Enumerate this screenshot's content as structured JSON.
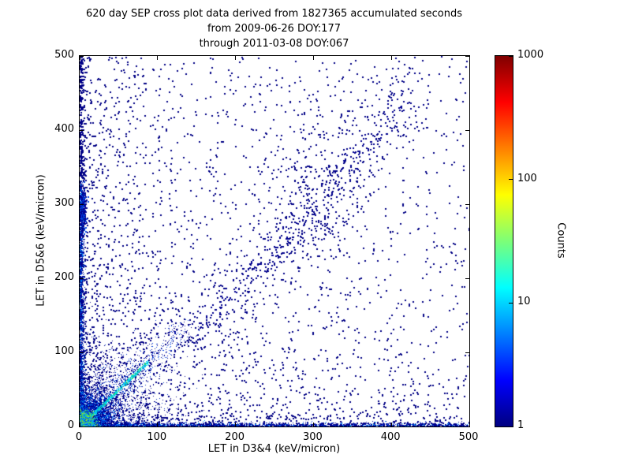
{
  "chart_data": {
    "type": "scatter",
    "subtype": "2d-density-cross-plot",
    "title_lines": [
      "620 day SEP cross plot data derived from 1827365 accumulated seconds",
      "from 2009-06-26 DOY:177",
      "through 2011-03-08 DOY:067"
    ],
    "xlabel": "LET in D3&4 (keV/micron)",
    "ylabel": "LET in D5&6 (keV/micron)",
    "xlim": [
      0,
      500
    ],
    "ylim": [
      0,
      500
    ],
    "xticks": [
      0,
      100,
      200,
      300,
      400,
      500
    ],
    "yticks": [
      0,
      100,
      200,
      300,
      400,
      500
    ],
    "grid": false,
    "colorbar": {
      "label": "Counts",
      "scale": "log",
      "min": 1,
      "max": 1000,
      "ticks": [
        1,
        10,
        100,
        1000
      ],
      "colormap": "jet",
      "gradient_stops": [
        {
          "pos": 0.0,
          "color": "#000080"
        },
        {
          "pos": 0.125,
          "color": "#0000ff"
        },
        {
          "pos": 0.375,
          "color": "#00ffff"
        },
        {
          "pos": 0.5,
          "color": "#7cff78"
        },
        {
          "pos": 0.625,
          "color": "#ffff00"
        },
        {
          "pos": 0.75,
          "color": "#ff8000"
        },
        {
          "pos": 0.875,
          "color": "#ff0000"
        },
        {
          "pos": 1.0,
          "color": "#800000"
        }
      ]
    },
    "single_count_color": "#000084",
    "clusters": [
      {
        "name": "origin-outer-halo",
        "shape": "gaussian",
        "cx": 0,
        "cy": 0,
        "sx": 50,
        "sy": 50,
        "n": 1600,
        "size": 1,
        "colors": [
          {
            "c": "#000088",
            "w": 0.8
          },
          {
            "c": "#0030c0",
            "w": 0.2
          }
        ]
      },
      {
        "name": "background-lower-triangle",
        "shape": "power",
        "ex": 1.7,
        "ey": 3.2,
        "n": 1600,
        "size": 2,
        "colors": [
          {
            "c": "#000084",
            "w": 1
          }
        ]
      },
      {
        "name": "background-left-column",
        "shape": "power",
        "ex": 3.2,
        "ey": 1.6,
        "n": 1500,
        "size": 2,
        "colors": [
          {
            "c": "#000084",
            "w": 1
          }
        ]
      },
      {
        "name": "background-sparse-field",
        "shape": "power",
        "ex": 1.25,
        "ey": 1.25,
        "n": 300,
        "size": 2,
        "colors": [
          {
            "c": "#000084",
            "w": 1
          }
        ]
      },
      {
        "name": "upper-diagonal-band",
        "shape": "line",
        "x0": 130,
        "y0": 95,
        "x1": 445,
        "y1": 475,
        "spread": 24,
        "decay": 1.0,
        "n": 430,
        "size": 2,
        "colors": [
          {
            "c": "#000088",
            "w": 1
          }
        ]
      },
      {
        "name": "upper-diagonal-inner",
        "shape": "line",
        "x0": 150,
        "y0": 120,
        "x1": 420,
        "y1": 445,
        "spread": 9,
        "decay": 1.0,
        "n": 200,
        "size": 2,
        "colors": [
          {
            "c": "#000090",
            "w": 1
          }
        ]
      },
      {
        "name": "mid-right-cluster",
        "shape": "gaussian",
        "cx": 310,
        "cy": 330,
        "sx": 38,
        "sy": 75,
        "n": 240,
        "size": 2,
        "colors": [
          {
            "c": "#000086",
            "w": 1
          }
        ]
      },
      {
        "name": "y-axis-band-far",
        "shape": "line",
        "x0": 1.5,
        "y0": 150,
        "x1": 1.5,
        "y1": 500,
        "spread": 2,
        "decay": 1.0,
        "n": 260,
        "size": 2,
        "colors": [
          {
            "c": "#000088",
            "w": 1
          }
        ]
      },
      {
        "name": "x-axis-band-far",
        "shape": "line",
        "x0": 30,
        "y0": 1.5,
        "x1": 500,
        "y1": 1.5,
        "spread": 2,
        "decay": 1.0,
        "n": 500,
        "size": 2,
        "colors": [
          {
            "c": "#000088",
            "w": 1
          }
        ]
      },
      {
        "name": "y-axis-clump-300",
        "shape": "gaussian",
        "cx": 3,
        "cy": 295,
        "sx": 3,
        "sy": 14,
        "n": 220,
        "size": 2,
        "colors": [
          {
            "c": "#000090",
            "w": 0.7
          },
          {
            "c": "#0040e0",
            "w": 0.3
          }
        ]
      },
      {
        "name": "origin-halo",
        "shape": "gaussian",
        "cx": 5,
        "cy": 5,
        "sx": 20,
        "sy": 20,
        "n": 3200,
        "size": 1,
        "colors": [
          {
            "c": "#000090",
            "w": 0.5
          },
          {
            "c": "#0030d8",
            "w": 0.3
          },
          {
            "c": "#0090ff",
            "w": 0.2
          }
        ]
      },
      {
        "name": "unity-diagonal-haze",
        "shape": "line",
        "x0": 0,
        "y0": 0,
        "x1": 135,
        "y1": 135,
        "spread": 9,
        "decay": 1.4,
        "n": 900,
        "size": 1,
        "colors": [
          {
            "c": "#000090",
            "w": 0.6
          },
          {
            "c": "#0040e0",
            "w": 0.4
          }
        ]
      },
      {
        "name": "x-axis-band",
        "shape": "line",
        "x0": 0,
        "y0": 1.5,
        "x1": 500,
        "y1": 1.5,
        "spread": 2.2,
        "decay": 2.0,
        "n": 2600,
        "size": 1,
        "colors": [
          {
            "c": "#000090",
            "w": 0.55
          },
          {
            "c": "#0040e0",
            "w": 0.3
          },
          {
            "c": "#00a0ff",
            "w": 0.15
          }
        ]
      },
      {
        "name": "y-axis-band",
        "shape": "line",
        "x0": 1.5,
        "y0": 0,
        "x1": 1.5,
        "y1": 330,
        "spread": 2.2,
        "decay": 1.8,
        "n": 2000,
        "size": 1,
        "colors": [
          {
            "c": "#000090",
            "w": 0.55
          },
          {
            "c": "#0040e0",
            "w": 0.3
          },
          {
            "c": "#00a0ff",
            "w": 0.15
          }
        ]
      },
      {
        "name": "unity-diagonal-core",
        "shape": "line",
        "x0": 2,
        "y0": 2,
        "x1": 88,
        "y1": 88,
        "spread": 1.1,
        "decay": 1.2,
        "n": 1000,
        "size": 1,
        "colors": [
          {
            "c": "#00e0e0",
            "w": 0.5
          },
          {
            "c": "#00b0ff",
            "w": 0.3
          },
          {
            "c": "#48d848",
            "w": 0.2
          }
        ]
      },
      {
        "name": "origin-core",
        "shape": "gaussian",
        "cx": 4,
        "cy": 4,
        "sx": 7,
        "sy": 7,
        "n": 2600,
        "size": 1,
        "colors": [
          {
            "c": "#20c8a0",
            "w": 0.25
          },
          {
            "c": "#58d838",
            "w": 0.2
          },
          {
            "c": "#b8e800",
            "w": 0.1
          },
          {
            "c": "#00a0ff",
            "w": 0.25
          },
          {
            "c": "#0050e8",
            "w": 0.2
          }
        ]
      }
    ]
  }
}
